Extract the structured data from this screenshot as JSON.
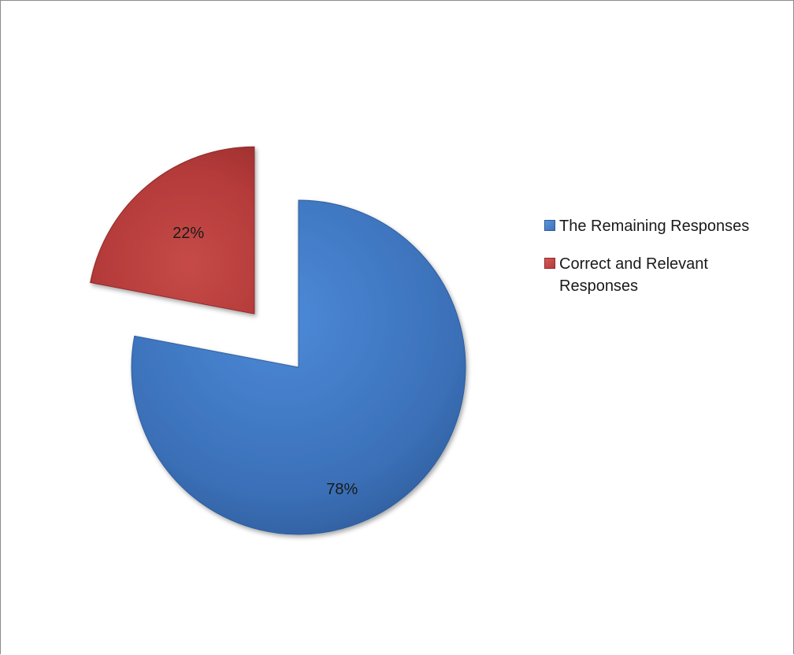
{
  "chart_data": {
    "type": "pie",
    "title": "",
    "exploded": true,
    "legend_position": "right",
    "slices": [
      {
        "name": "The Remaining Responses",
        "value": 78,
        "label": "78%",
        "color": "#3f77c3"
      },
      {
        "name": "Correct and Relevant Responses",
        "value": 22,
        "label": "22%",
        "color": "#b83c3c"
      }
    ]
  }
}
